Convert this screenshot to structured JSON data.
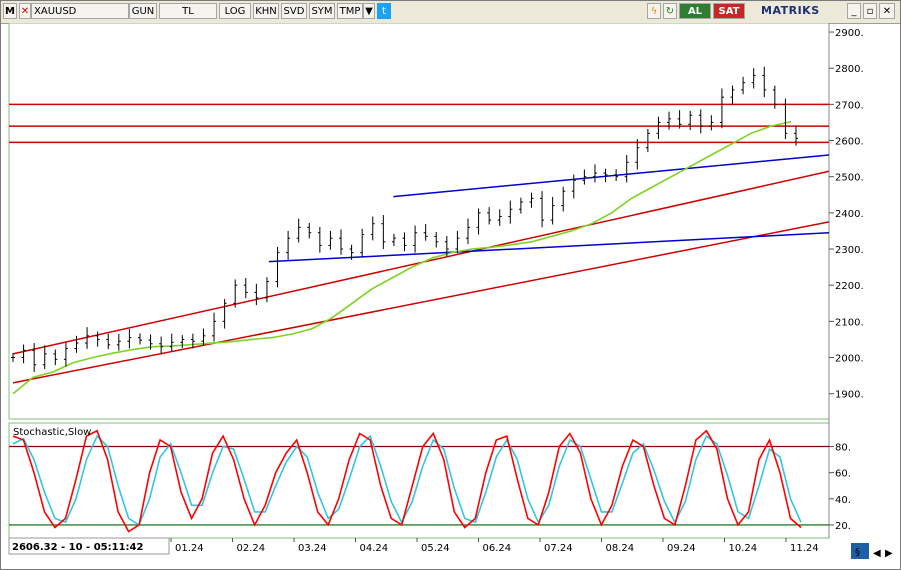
{
  "toolbar": {
    "menu_letter": "M",
    "symbol": "XAUUSD",
    "period": "GUN",
    "currency": "TL",
    "log": "LOG",
    "khn": "KHN",
    "svd": "SVD",
    "sym": "SYM",
    "tmp": "TMP",
    "buy": "AL",
    "sell": "SAT",
    "logo": "MATRIKS",
    "icons": [
      "dropdown-icon",
      "twitter-icon",
      "lightning-icon",
      "refresh-icon",
      "minimize-icon",
      "restore-icon",
      "close-icon"
    ]
  },
  "status": {
    "readout": "2606.32 - 10 - 05:11:42"
  },
  "chart_data": [
    {
      "type": "line",
      "title": "",
      "series_name": "",
      "x_ticks": [
        "01.24",
        "02.24",
        "03.24",
        "04.24",
        "05.24",
        "06.24",
        "07.24",
        "08.24",
        "09.24",
        "10.24",
        "11.24"
      ],
      "y_ticks": [
        "1900.",
        "2000.",
        "2100.",
        "2200.",
        "2300.",
        "2400.",
        "2500.",
        "2600.",
        "2700.",
        "2800.",
        "2900."
      ],
      "ylim": [
        1830,
        2925
      ],
      "close": [
        2000,
        2020,
        1980,
        2010,
        1995,
        2025,
        2040,
        2060,
        2050,
        2035,
        2045,
        2055,
        2048,
        2038,
        2030,
        2042,
        2050,
        2045,
        2060,
        2100,
        2150,
        2200,
        2180,
        2165,
        2210,
        2290,
        2330,
        2360,
        2345,
        2310,
        2330,
        2300,
        2290,
        2340,
        2370,
        2320,
        2330,
        2310,
        2345,
        2335,
        2320,
        2300,
        2330,
        2360,
        2400,
        2380,
        2390,
        2410,
        2430,
        2440,
        2380,
        2420,
        2460,
        2490,
        2500,
        2510,
        2505,
        2500,
        2540,
        2580,
        2620,
        2650,
        2660,
        2645,
        2670,
        2640,
        2650,
        2720,
        2740,
        2760,
        2780,
        2740,
        2700,
        2620,
        2606
      ],
      "ma_series": [
        1900,
        1945,
        1960,
        1985,
        2000,
        2012,
        2022,
        2030,
        2032,
        2036,
        2040,
        2044,
        2050,
        2055,
        2065,
        2080,
        2110,
        2150,
        2190,
        2220,
        2250,
        2275,
        2290,
        2300,
        2305,
        2312,
        2320,
        2335,
        2350,
        2370,
        2400,
        2440,
        2470,
        2500,
        2530,
        2560,
        2590,
        2620,
        2640,
        2652
      ],
      "horizontal_levels": [
        2700,
        2640,
        2595
      ],
      "trend_lines": [
        {
          "color": "red",
          "from": [
            0,
            2010
          ],
          "to": [
            11.8,
            2515
          ]
        },
        {
          "color": "red",
          "from": [
            0,
            1930
          ],
          "to": [
            11.8,
            2375
          ]
        },
        {
          "color": "blue",
          "from": [
            5.5,
            2445
          ],
          "to": [
            11.8,
            2560
          ]
        },
        {
          "color": "blue",
          "from": [
            3.7,
            2265
          ],
          "to": [
            11.8,
            2345
          ]
        }
      ]
    },
    {
      "type": "line",
      "title": "Stochastic,Slow",
      "ylim": [
        10,
        98
      ],
      "y_ticks": [
        "20.",
        "40.",
        "60.",
        "80."
      ],
      "levels": [
        80,
        20
      ],
      "k_values": [
        88,
        85,
        60,
        30,
        18,
        25,
        55,
        88,
        92,
        70,
        30,
        15,
        20,
        60,
        85,
        80,
        45,
        25,
        40,
        75,
        88,
        70,
        40,
        20,
        35,
        60,
        75,
        85,
        60,
        30,
        20,
        40,
        70,
        90,
        85,
        50,
        25,
        20,
        50,
        80,
        90,
        70,
        30,
        18,
        25,
        60,
        85,
        88,
        55,
        25,
        20,
        45,
        80,
        90,
        75,
        40,
        20,
        35,
        65,
        85,
        80,
        50,
        25,
        20,
        50,
        85,
        92,
        78,
        40,
        20,
        30,
        70,
        85,
        60,
        25,
        18
      ],
      "d_values": [
        82,
        86,
        70,
        45,
        25,
        22,
        40,
        70,
        88,
        80,
        50,
        25,
        20,
        40,
        72,
        82,
        60,
        35,
        35,
        60,
        80,
        78,
        55,
        30,
        30,
        50,
        68,
        80,
        72,
        45,
        25,
        32,
        55,
        80,
        88,
        65,
        38,
        22,
        38,
        65,
        85,
        78,
        48,
        25,
        22,
        45,
        72,
        85,
        70,
        40,
        22,
        35,
        65,
        85,
        80,
        55,
        30,
        30,
        52,
        75,
        82,
        62,
        38,
        22,
        38,
        70,
        88,
        82,
        58,
        30,
        25,
        50,
        78,
        72,
        40,
        22
      ]
    }
  ]
}
